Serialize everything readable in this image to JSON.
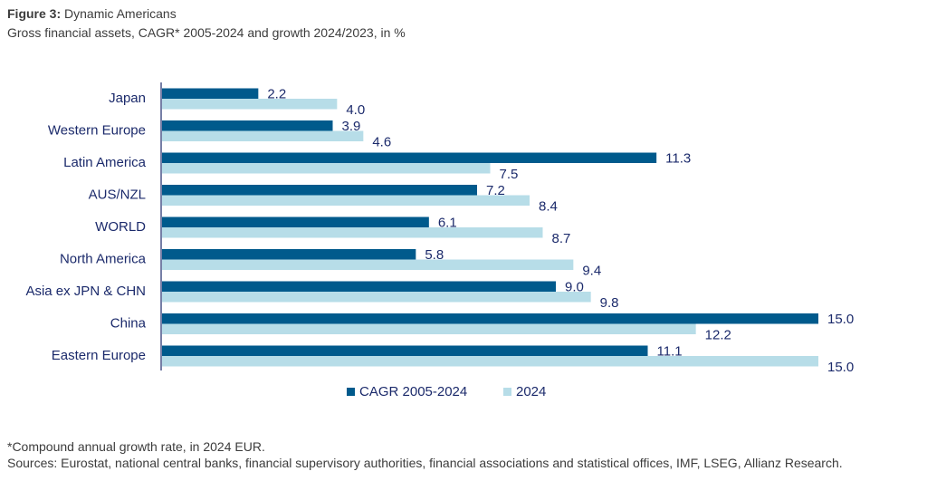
{
  "figure": {
    "label": "Figure 3:",
    "title": "Dynamic Americans",
    "subtitle": "Gross financial assets, CAGR* 2005-2024 and growth 2024/2023, in %"
  },
  "footnotes": {
    "note": "*Compound annual growth rate, in 2024 EUR.",
    "sources": "Sources: Eurostat, national central banks, financial supervisory authorities, financial associations and statistical offices, IMF, LSEG, Allianz Research."
  },
  "chart_data": {
    "type": "bar",
    "orientation": "horizontal",
    "title": "Dynamic Americans",
    "subtitle": "Gross financial assets, CAGR* 2005-2024 and growth 2024/2023, in %",
    "categories": [
      "Japan",
      "Western Europe",
      "Latin America",
      "AUS/NZL",
      "WORLD",
      "North America",
      "Asia ex JPN & CHN",
      "China",
      "Eastern Europe"
    ],
    "series": [
      {
        "name": "CAGR 2005-2024",
        "color": "#005a8c",
        "values": [
          2.2,
          3.9,
          11.3,
          7.2,
          6.1,
          5.8,
          9.0,
          15.0,
          11.1
        ],
        "labels": [
          "2.2",
          "3.9",
          "11.3",
          "7.2",
          "6.1",
          "5.8",
          "9.0",
          "15.0",
          "11.1"
        ]
      },
      {
        "name": "2024",
        "color": "#b7dde8",
        "values": [
          4.0,
          4.6,
          7.5,
          8.4,
          8.7,
          9.4,
          9.8,
          12.2,
          15.0
        ],
        "labels": [
          "4.0",
          "4.6",
          "7.5",
          "8.4",
          "8.7",
          "9.4",
          "9.8",
          "12.2",
          "15.0"
        ]
      }
    ],
    "xlim": [
      0,
      15
    ],
    "grid": false,
    "legend": "bottom-center"
  }
}
